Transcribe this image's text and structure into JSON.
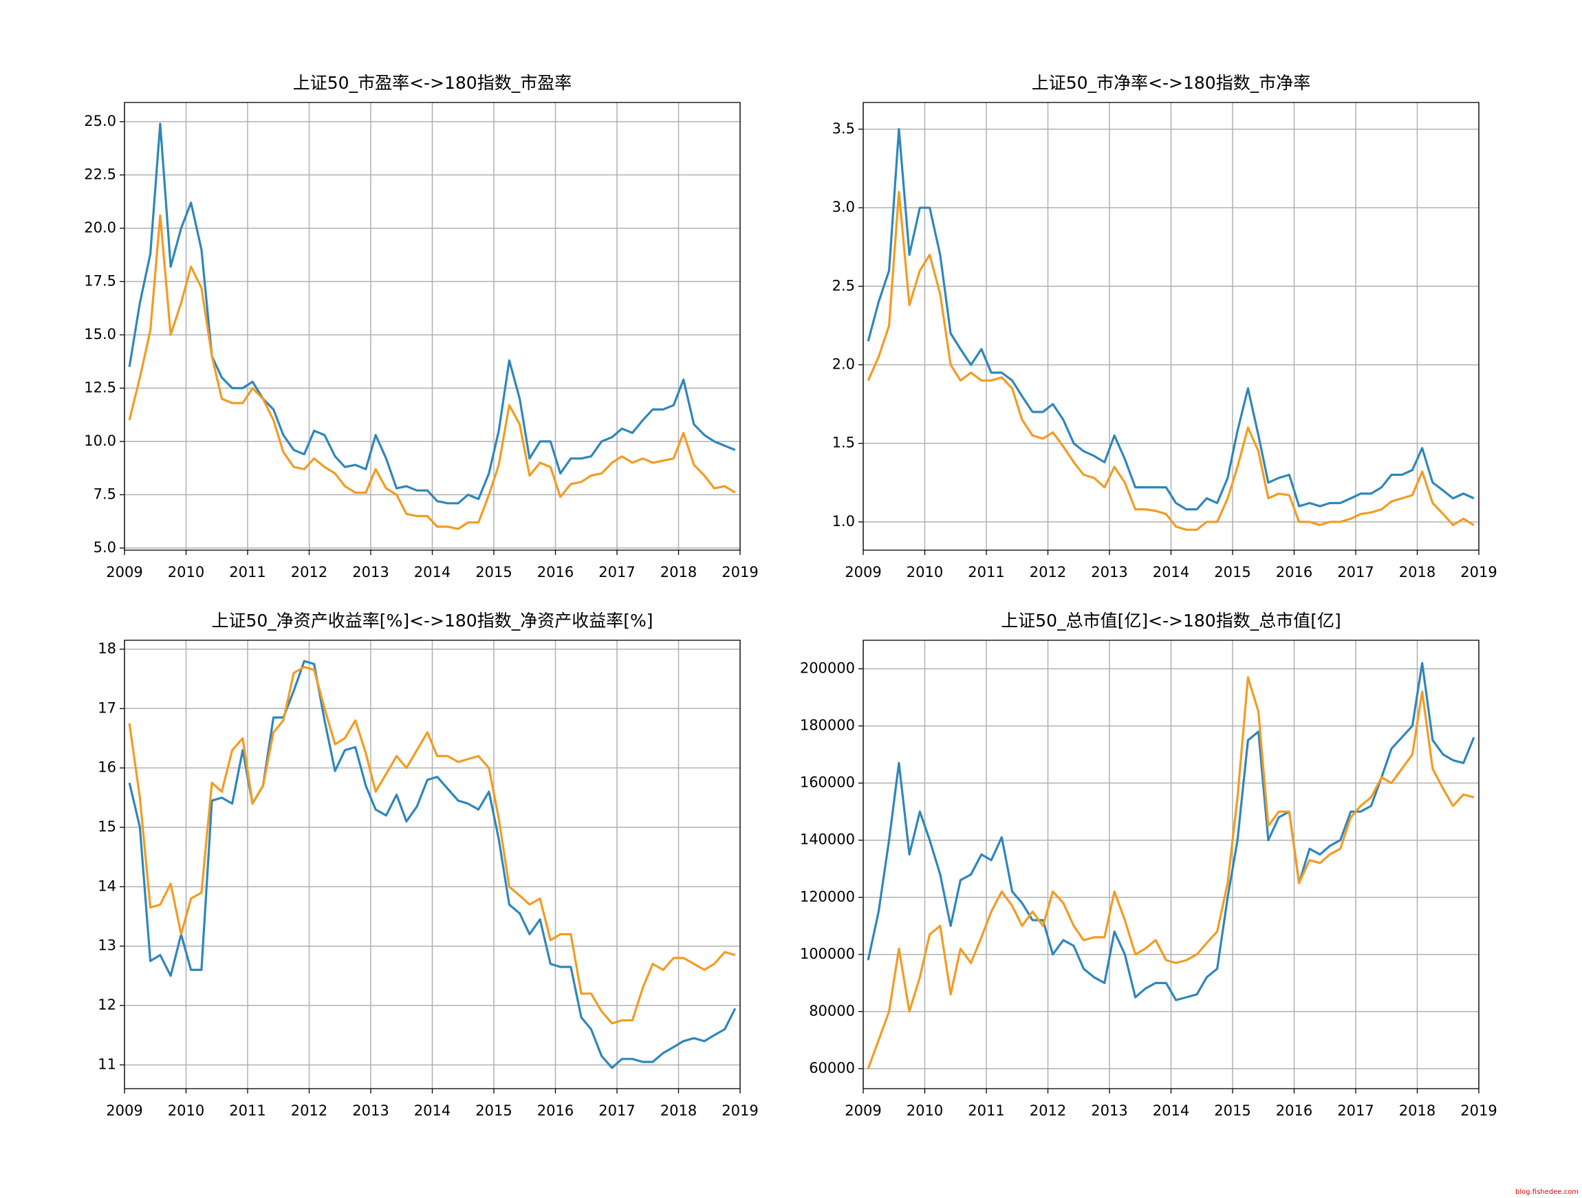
{
  "watermark": "blog.fishedee.com",
  "chart_data": [
    {
      "type": "line",
      "title": "上证50_市盈率<->180指数_市盈率",
      "x": [
        2009.08,
        2009.25,
        2009.42,
        2009.58,
        2009.75,
        2009.92,
        2010.08,
        2010.25,
        2010.42,
        2010.58,
        2010.75,
        2010.92,
        2011.08,
        2011.25,
        2011.42,
        2011.58,
        2011.75,
        2011.92,
        2012.08,
        2012.25,
        2012.42,
        2012.58,
        2012.75,
        2012.92,
        2013.08,
        2013.25,
        2013.42,
        2013.58,
        2013.75,
        2013.92,
        2014.08,
        2014.25,
        2014.42,
        2014.58,
        2014.75,
        2014.92,
        2015.08,
        2015.25,
        2015.42,
        2015.58,
        2015.75,
        2015.92,
        2016.08,
        2016.25,
        2016.42,
        2016.58,
        2016.75,
        2016.92,
        2017.08,
        2017.25,
        2017.42,
        2017.58,
        2017.75,
        2017.92,
        2018.08,
        2018.25,
        2018.42,
        2018.58,
        2018.75,
        2018.92
      ],
      "series": [
        {
          "color": "#2e86bb",
          "values": [
            13.5,
            16.5,
            18.8,
            24.9,
            18.2,
            20.0,
            21.2,
            19.0,
            14.0,
            13.0,
            12.5,
            12.5,
            12.8,
            12.0,
            11.5,
            10.3,
            9.6,
            9.4,
            10.5,
            10.3,
            9.3,
            8.8,
            8.9,
            8.7,
            10.3,
            9.2,
            7.8,
            7.9,
            7.7,
            7.7,
            7.2,
            7.1,
            7.1,
            7.5,
            7.3,
            8.5,
            10.5,
            13.8,
            12.0,
            9.2,
            10.0,
            10.0,
            8.5,
            9.2,
            9.2,
            9.3,
            10.0,
            10.2,
            10.6,
            10.4,
            11.0,
            11.5,
            11.5,
            11.7,
            12.9,
            10.8,
            10.3,
            10.0,
            9.8,
            9.6
          ]
        },
        {
          "color": "#f39b22",
          "values": [
            11.0,
            13.0,
            15.2,
            20.6,
            15.0,
            16.5,
            18.2,
            17.2,
            14.0,
            12.0,
            11.8,
            11.8,
            12.5,
            12.0,
            11.0,
            9.5,
            8.8,
            8.7,
            9.2,
            8.8,
            8.5,
            7.9,
            7.6,
            7.6,
            8.7,
            7.8,
            7.5,
            6.6,
            6.5,
            6.5,
            6.0,
            6.0,
            5.9,
            6.2,
            6.2,
            7.5,
            8.9,
            11.7,
            10.8,
            8.4,
            9.0,
            8.8,
            7.4,
            8.0,
            8.1,
            8.4,
            8.5,
            9.0,
            9.3,
            9.0,
            9.2,
            9.0,
            9.1,
            9.2,
            10.4,
            8.9,
            8.4,
            7.8,
            7.9,
            7.6
          ]
        }
      ],
      "xlim": [
        2009,
        2019
      ],
      "xticks": [
        2009,
        2010,
        2011,
        2012,
        2013,
        2014,
        2015,
        2016,
        2017,
        2018,
        2019
      ],
      "ylim": [
        4.9,
        25.9
      ],
      "yticks": [
        {
          "value": 5,
          "label": "5.0"
        },
        7.5,
        {
          "value": 10,
          "label": "10.0"
        },
        12.5,
        {
          "value": 15,
          "label": "15.0"
        },
        17.5,
        {
          "value": 20,
          "label": "20.0"
        },
        22.5,
        {
          "value": 25,
          "label": "25.0"
        }
      ],
      "grid": true
    },
    {
      "type": "line",
      "title": "上证50_市净率<->180指数_市净率",
      "x": [
        2009.08,
        2009.25,
        2009.42,
        2009.58,
        2009.75,
        2009.92,
        2010.08,
        2010.25,
        2010.42,
        2010.58,
        2010.75,
        2010.92,
        2011.08,
        2011.25,
        2011.42,
        2011.58,
        2011.75,
        2011.92,
        2012.08,
        2012.25,
        2012.42,
        2012.58,
        2012.75,
        2012.92,
        2013.08,
        2013.25,
        2013.42,
        2013.58,
        2013.75,
        2013.92,
        2014.08,
        2014.25,
        2014.42,
        2014.58,
        2014.75,
        2014.92,
        2015.08,
        2015.25,
        2015.42,
        2015.58,
        2015.75,
        2015.92,
        2016.08,
        2016.25,
        2016.42,
        2016.58,
        2016.75,
        2016.92,
        2017.08,
        2017.25,
        2017.42,
        2017.58,
        2017.75,
        2017.92,
        2018.08,
        2018.25,
        2018.42,
        2018.58,
        2018.75,
        2018.92
      ],
      "series": [
        {
          "color": "#2e86bb",
          "values": [
            2.15,
            2.4,
            2.6,
            3.5,
            2.7,
            3.0,
            3.0,
            2.7,
            2.2,
            2.1,
            2.0,
            2.1,
            1.95,
            1.95,
            1.9,
            1.8,
            1.7,
            1.7,
            1.75,
            1.65,
            1.5,
            1.45,
            1.42,
            1.38,
            1.55,
            1.4,
            1.22,
            1.22,
            1.22,
            1.22,
            1.12,
            1.08,
            1.08,
            1.15,
            1.12,
            1.28,
            1.58,
            1.85,
            1.55,
            1.25,
            1.28,
            1.3,
            1.1,
            1.12,
            1.1,
            1.12,
            1.12,
            1.15,
            1.18,
            1.18,
            1.22,
            1.3,
            1.3,
            1.33,
            1.47,
            1.25,
            1.2,
            1.15,
            1.18,
            1.15
          ]
        },
        {
          "color": "#f39b22",
          "values": [
            1.9,
            2.05,
            2.25,
            3.1,
            2.38,
            2.6,
            2.7,
            2.45,
            2.0,
            1.9,
            1.95,
            1.9,
            1.9,
            1.92,
            1.85,
            1.65,
            1.55,
            1.53,
            1.57,
            1.48,
            1.38,
            1.3,
            1.28,
            1.22,
            1.35,
            1.25,
            1.08,
            1.08,
            1.07,
            1.05,
            0.97,
            0.95,
            0.95,
            1.0,
            1.0,
            1.15,
            1.35,
            1.6,
            1.45,
            1.15,
            1.18,
            1.17,
            1.0,
            1.0,
            0.98,
            1.0,
            1.0,
            1.02,
            1.05,
            1.06,
            1.08,
            1.13,
            1.15,
            1.17,
            1.32,
            1.12,
            1.05,
            0.98,
            1.02,
            0.98
          ]
        }
      ],
      "xlim": [
        2009,
        2019
      ],
      "xticks": [
        2009,
        2010,
        2011,
        2012,
        2013,
        2014,
        2015,
        2016,
        2017,
        2018,
        2019
      ],
      "ylim": [
        0.82,
        3.67
      ],
      "yticks": [
        {
          "value": 1,
          "label": "1.0"
        },
        1.5,
        {
          "value": 2,
          "label": "2.0"
        },
        2.5,
        {
          "value": 3,
          "label": "3.0"
        },
        3.5
      ],
      "grid": true
    },
    {
      "type": "line",
      "title": "上证50_净资产收益率[%]<->180指数_净资产收益率[%]",
      "x": [
        2009.08,
        2009.25,
        2009.42,
        2009.58,
        2009.75,
        2009.92,
        2010.08,
        2010.25,
        2010.42,
        2010.58,
        2010.75,
        2010.92,
        2011.08,
        2011.25,
        2011.42,
        2011.58,
        2011.75,
        2011.92,
        2012.08,
        2012.25,
        2012.42,
        2012.58,
        2012.75,
        2012.92,
        2013.08,
        2013.25,
        2013.42,
        2013.58,
        2013.75,
        2013.92,
        2014.08,
        2014.25,
        2014.42,
        2014.58,
        2014.75,
        2014.92,
        2015.08,
        2015.25,
        2015.42,
        2015.58,
        2015.75,
        2015.92,
        2016.08,
        2016.25,
        2016.42,
        2016.58,
        2016.75,
        2016.92,
        2017.08,
        2017.25,
        2017.42,
        2017.58,
        2017.75,
        2017.92,
        2018.08,
        2018.25,
        2018.42,
        2018.58,
        2018.75,
        2018.92
      ],
      "series": [
        {
          "color": "#2e86bb",
          "values": [
            15.75,
            15.0,
            12.75,
            12.85,
            12.5,
            13.2,
            12.6,
            12.6,
            15.45,
            15.5,
            15.4,
            16.3,
            15.4,
            15.7,
            16.85,
            16.85,
            17.3,
            17.8,
            17.75,
            16.8,
            15.95,
            16.3,
            16.35,
            15.7,
            15.3,
            15.2,
            15.55,
            15.1,
            15.35,
            15.8,
            15.85,
            15.65,
            15.45,
            15.4,
            15.3,
            15.6,
            14.8,
            13.7,
            13.55,
            13.2,
            13.45,
            12.7,
            12.65,
            12.65,
            11.8,
            11.6,
            11.15,
            10.95,
            11.1,
            11.1,
            11.05,
            11.05,
            11.2,
            11.3,
            11.4,
            11.45,
            11.4,
            11.5,
            11.6,
            11.95
          ]
        },
        {
          "color": "#f39b22",
          "values": [
            16.75,
            15.5,
            13.65,
            13.7,
            14.05,
            13.2,
            13.8,
            13.9,
            15.75,
            15.6,
            16.3,
            16.5,
            15.4,
            15.7,
            16.6,
            16.8,
            17.6,
            17.7,
            17.65,
            17.0,
            16.4,
            16.5,
            16.8,
            16.25,
            15.6,
            15.9,
            16.2,
            16.0,
            16.3,
            16.6,
            16.2,
            16.2,
            16.1,
            16.15,
            16.2,
            16.0,
            15.15,
            14.0,
            13.85,
            13.7,
            13.8,
            13.1,
            13.2,
            13.2,
            12.2,
            12.2,
            11.9,
            11.7,
            11.75,
            11.75,
            12.3,
            12.7,
            12.6,
            12.8,
            12.8,
            12.7,
            12.6,
            12.7,
            12.9,
            12.85
          ]
        }
      ],
      "xlim": [
        2009,
        2019
      ],
      "xticks": [
        2009,
        2010,
        2011,
        2012,
        2013,
        2014,
        2015,
        2016,
        2017,
        2018,
        2019
      ],
      "ylim": [
        10.6,
        18.15
      ],
      "yticks": [
        11,
        12,
        13,
        14,
        15,
        16,
        17,
        18
      ],
      "grid": true
    },
    {
      "type": "line",
      "title": "上证50_总市值[亿]<->180指数_总市值[亿]",
      "x": [
        2009.08,
        2009.25,
        2009.42,
        2009.58,
        2009.75,
        2009.92,
        2010.08,
        2010.25,
        2010.42,
        2010.58,
        2010.75,
        2010.92,
        2011.08,
        2011.25,
        2011.42,
        2011.58,
        2011.75,
        2011.92,
        2012.08,
        2012.25,
        2012.42,
        2012.58,
        2012.75,
        2012.92,
        2013.08,
        2013.25,
        2013.42,
        2013.58,
        2013.75,
        2013.92,
        2014.08,
        2014.25,
        2014.42,
        2014.58,
        2014.75,
        2014.92,
        2015.08,
        2015.25,
        2015.42,
        2015.58,
        2015.75,
        2015.92,
        2016.08,
        2016.25,
        2016.42,
        2016.58,
        2016.75,
        2016.92,
        2017.08,
        2017.25,
        2017.42,
        2017.58,
        2017.75,
        2017.92,
        2018.08,
        2018.25,
        2018.42,
        2018.58,
        2018.75,
        2018.92
      ],
      "series": [
        {
          "color": "#2e86bb",
          "values": [
            98000,
            115000,
            140000,
            167000,
            135000,
            150000,
            140000,
            128000,
            110000,
            126000,
            128000,
            135000,
            133000,
            141000,
            122000,
            118000,
            112000,
            112000,
            100000,
            105000,
            103000,
            95000,
            92000,
            90000,
            108000,
            100000,
            85000,
            88000,
            90000,
            90000,
            84000,
            85000,
            86000,
            92000,
            95000,
            120000,
            140000,
            175000,
            178000,
            140000,
            148000,
            150000,
            125000,
            137000,
            135000,
            138000,
            140000,
            150000,
            150000,
            152000,
            162000,
            172000,
            176000,
            180000,
            202000,
            175000,
            170000,
            168000,
            167000,
            176000
          ]
        },
        {
          "color": "#f39b22",
          "values": [
            60000,
            70000,
            80000,
            102000,
            80000,
            92000,
            107000,
            110000,
            86000,
            102000,
            97000,
            106000,
            115000,
            122000,
            117000,
            110000,
            115000,
            110000,
            122000,
            118000,
            110000,
            105000,
            106000,
            106000,
            122000,
            112000,
            100000,
            102000,
            105000,
            98000,
            97000,
            98000,
            100000,
            104000,
            108000,
            125000,
            155000,
            197000,
            185000,
            145000,
            150000,
            150000,
            125000,
            133000,
            132000,
            135000,
            137000,
            148000,
            152000,
            155000,
            162000,
            160000,
            165000,
            170000,
            192000,
            165000,
            158000,
            152000,
            156000,
            155000
          ]
        }
      ],
      "xlim": [
        2009,
        2019
      ],
      "xticks": [
        2009,
        2010,
        2011,
        2012,
        2013,
        2014,
        2015,
        2016,
        2017,
        2018,
        2019
      ],
      "ylim": [
        53000,
        210000
      ],
      "yticks": [
        60000,
        80000,
        100000,
        120000,
        140000,
        160000,
        180000,
        200000
      ],
      "grid": true
    }
  ]
}
